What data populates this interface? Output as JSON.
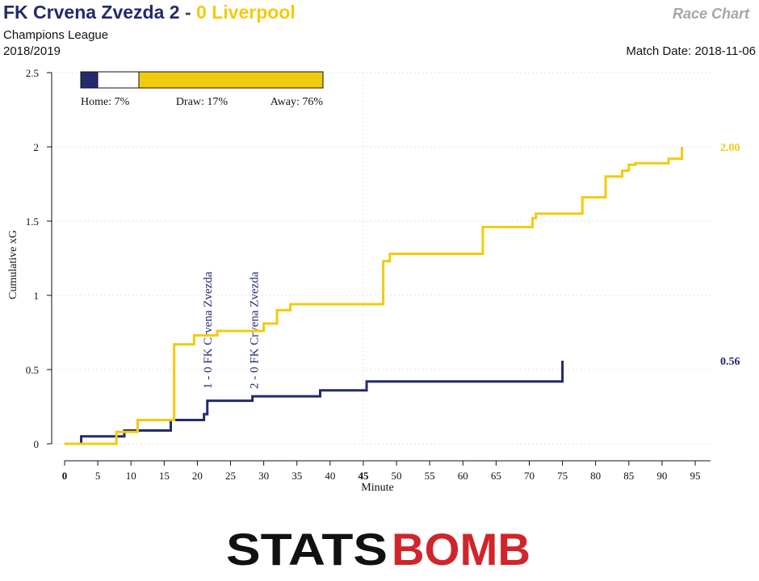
{
  "header": {
    "home_team": "FK Crvena Zvezda",
    "home_score": "2",
    "separator": " - ",
    "away_score": "0",
    "away_team": "Liverpool",
    "competition": "Champions League",
    "season": "2018/2019",
    "chart_label": "Race Chart",
    "match_date": "Match Date: 2018-11-06"
  },
  "colors": {
    "home": "#232a6e",
    "away": "#f2cb0c",
    "draw": "#ffffff",
    "grid": "#cccccc",
    "logo_dark": "#111111",
    "logo_red": "#d0252b"
  },
  "probabilities": {
    "home_label": "Home: 7%",
    "draw_label": "Draw: 17%",
    "away_label": "Away: 76%",
    "home": 0.07,
    "draw": 0.17,
    "away": 0.76
  },
  "logo": {
    "left_text": "STATS",
    "right_text": "BOMB"
  },
  "chart_data": {
    "type": "line",
    "xlabel": "Minute",
    "ylabel": "Cumulative xG",
    "xlim": [
      0,
      95
    ],
    "ylim": [
      0,
      2.5
    ],
    "x_ticks": [
      "0",
      "5",
      "10",
      "15",
      "20",
      "25",
      "30",
      "35",
      "40",
      "45",
      "50",
      "55",
      "60",
      "65",
      "70",
      "75",
      "80",
      "85",
      "90",
      "95"
    ],
    "y_ticks": [
      "0",
      "0.5",
      "1",
      "1.5",
      "2",
      "2.5"
    ],
    "grid": "dotted at half time and y ticks",
    "series": [
      {
        "team": "home",
        "final_label": "0.56",
        "steps": [
          [
            0,
            0
          ],
          [
            2.5,
            0.05
          ],
          [
            7.5,
            0.05
          ],
          [
            9,
            0.09
          ],
          [
            16,
            0.16
          ],
          [
            21,
            0.2
          ],
          [
            21.5,
            0.29
          ],
          [
            28.3,
            0.32
          ],
          [
            38.5,
            0.36
          ],
          [
            45.5,
            0.42
          ],
          [
            75,
            0.56
          ]
        ]
      },
      {
        "team": "away",
        "final_label": "2.00",
        "steps": [
          [
            0,
            0
          ],
          [
            7.8,
            0.08
          ],
          [
            11,
            0.16
          ],
          [
            16.5,
            0.67
          ],
          [
            19.5,
            0.73
          ],
          [
            21.5,
            0.73
          ],
          [
            23,
            0.76
          ],
          [
            30,
            0.81
          ],
          [
            32,
            0.9
          ],
          [
            34,
            0.94
          ],
          [
            48,
            1.23
          ],
          [
            49,
            1.28
          ],
          [
            63,
            1.46
          ],
          [
            70.5,
            1.52
          ],
          [
            71,
            1.55
          ],
          [
            78,
            1.66
          ],
          [
            81.5,
            1.8
          ],
          [
            84,
            1.84
          ],
          [
            85,
            1.88
          ],
          [
            86,
            1.89
          ],
          [
            91,
            1.92
          ],
          [
            93,
            2.0
          ]
        ]
      }
    ],
    "annotations": [
      {
        "minute": 21.5,
        "text": "1 - 0 FK Crvena Zvezda"
      },
      {
        "minute": 28.5,
        "text": "2 - 0 FK Crvena Zvezda"
      }
    ]
  }
}
